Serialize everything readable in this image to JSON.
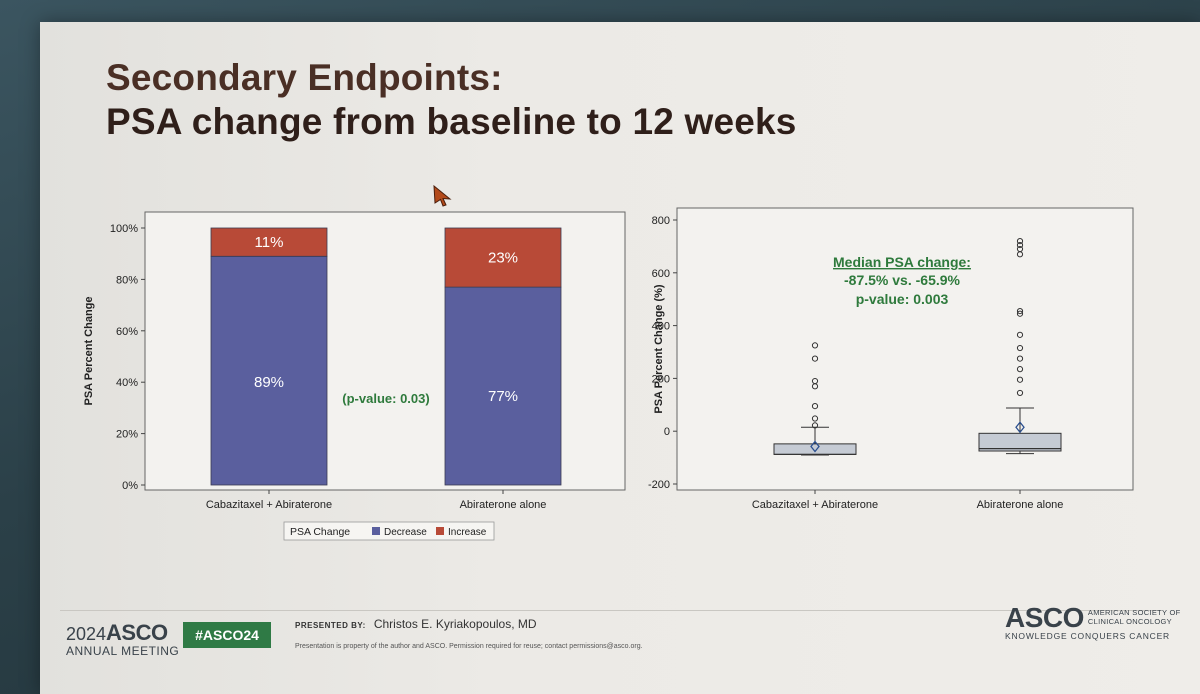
{
  "slide": {
    "title_line1": "Secondary Endpoints:",
    "title_line2": "PSA change from baseline to 12 weeks"
  },
  "chart_data": [
    {
      "type": "bar",
      "stacked": true,
      "ylabel": "PSA Percent Change",
      "ylim": [
        0,
        100
      ],
      "yticks": [
        "0%",
        "20%",
        "40%",
        "60%",
        "80%",
        "100%"
      ],
      "categories": [
        "Cabazitaxel + Abiraterone",
        "Abiraterone alone"
      ],
      "series": [
        {
          "name": "Decrease",
          "values": [
            89,
            77
          ],
          "labels": [
            "89%",
            "77%"
          ],
          "color": "#5a5f9e"
        },
        {
          "name": "Increase",
          "values": [
            11,
            23
          ],
          "labels": [
            "11%",
            "23%"
          ],
          "color": "#b84a37"
        }
      ],
      "legend_title": "PSA Change",
      "legend_placement": "bottom",
      "annotation": "(p-value: 0.03)",
      "grid": false
    },
    {
      "type": "box",
      "ylabel": "PSA Percent Change (%)",
      "ylim": [
        -200,
        800
      ],
      "yticks": [
        "-200",
        "0",
        "200",
        "400",
        "600",
        "800"
      ],
      "categories": [
        "Cabazitaxel + Abiraterone",
        "Abiraterone alone"
      ],
      "boxes": [
        {
          "min": -90,
          "q1": -88,
          "median": -87.5,
          "q3": -48,
          "whisker_high": 15,
          "mean": -58,
          "outliers": [
            22,
            48,
            95,
            170,
            190,
            275,
            325
          ]
        },
        {
          "min": -85,
          "q1": -75,
          "median": -65.9,
          "q3": -8,
          "whisker_high": 88,
          "mean": 15,
          "outliers": [
            145,
            195,
            235,
            275,
            315,
            365,
            445,
            455,
            670,
            690,
            705,
            720
          ]
        }
      ],
      "box_color": "#c5cbd4",
      "annotation": {
        "heading": "Median PSA change:",
        "line2": "-87.5% vs. -65.9%",
        "line3": "p-value: 0.003",
        "color": "#2e7a3c"
      },
      "grid": false
    }
  ],
  "footer": {
    "year": "2024",
    "asco": "ASCO",
    "meeting": "ANNUAL MEETING",
    "hashtag": "#ASCO24",
    "presented_label": "PRESENTED BY:",
    "presenter": "Christos E. Kyriakopoulos, MD",
    "disclaimer": "Presentation is property of the author and ASCO. Permission required for reuse; contact permissions@asco.org.",
    "org_big": "ASCO",
    "org_line1": "AMERICAN SOCIETY OF",
    "org_line2": "CLINICAL ONCOLOGY",
    "org_tag": "KNOWLEDGE CONQUERS CANCER"
  },
  "colors": {
    "title": "#4a2f25",
    "accent_green": "#2e7a3c",
    "decrease": "#5a5f9e",
    "increase": "#b84a37"
  }
}
